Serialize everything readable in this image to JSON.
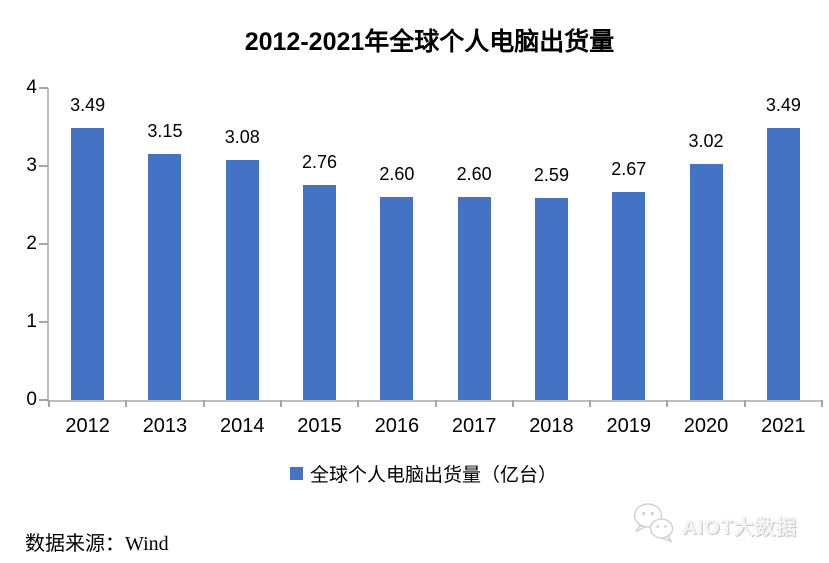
{
  "page": {
    "source": "数据来源：Wind",
    "watermark_text": "AIOT大数据"
  },
  "chart_data": {
    "type": "bar",
    "title": "2012-2021年全球个人电脑出货量",
    "categories": [
      "2012",
      "2013",
      "2014",
      "2015",
      "2016",
      "2017",
      "2018",
      "2019",
      "2020",
      "2021"
    ],
    "values": [
      3.49,
      3.15,
      3.08,
      2.76,
      2.6,
      2.6,
      2.59,
      2.67,
      3.02,
      3.49
    ],
    "series_name": "全球个人电脑出货量（亿台）",
    "xlabel": "",
    "ylabel": "",
    "ylim": [
      0,
      4
    ],
    "yticks": [
      0,
      1,
      2,
      3,
      4
    ],
    "grid": false,
    "legend_position": "bottom",
    "value_labels": true,
    "value_label_decimals": 2,
    "bar_color": "#4472C4"
  },
  "colors": {
    "bar": "#4472C4",
    "axis_line": "#BFBFBF",
    "tick": "#A6A6A6",
    "text": "#000000",
    "watermark": "#D9D9D9"
  },
  "icons": {
    "watermark_icon": "wechat-icon"
  }
}
